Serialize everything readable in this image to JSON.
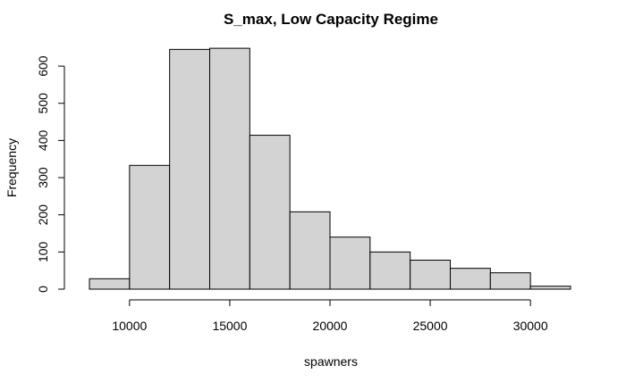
{
  "chart_data": {
    "type": "bar",
    "subtype": "histogram",
    "title": "S_max, Low Capacity Regime",
    "xlabel": "spawners",
    "ylabel": "Frequency",
    "bin_edges": [
      8000,
      10000,
      12000,
      14000,
      16000,
      18000,
      20000,
      22000,
      24000,
      26000,
      28000,
      30000,
      32000
    ],
    "counts": [
      28,
      333,
      645,
      648,
      414,
      208,
      140,
      100,
      78,
      56,
      44,
      8
    ],
    "xlim": [
      8000,
      32000
    ],
    "ylim": [
      0,
      650
    ],
    "x_ticks": [
      10000,
      15000,
      20000,
      25000,
      30000
    ],
    "y_ticks": [
      0,
      100,
      200,
      300,
      400,
      500,
      600
    ],
    "bar_fill": "#d3d3d3",
    "bar_stroke": "#000000",
    "grid": false,
    "legend": "none"
  }
}
